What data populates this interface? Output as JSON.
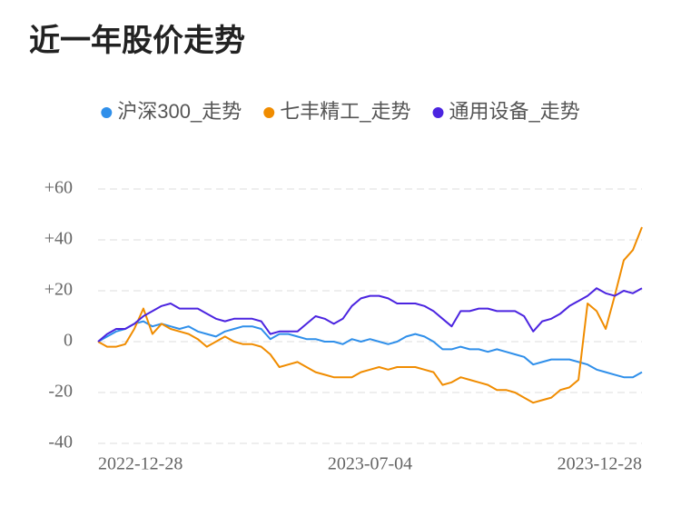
{
  "chart_data": {
    "type": "line",
    "title": "近一年股价走势",
    "categories": [
      "2022-12-28",
      null,
      null,
      null,
      null,
      null,
      null,
      null,
      null,
      null,
      null,
      null,
      null,
      null,
      null,
      null,
      null,
      null,
      null,
      null,
      null,
      null,
      null,
      null,
      null,
      null,
      null,
      null,
      null,
      null,
      "2023-07-04",
      null,
      null,
      null,
      null,
      null,
      null,
      null,
      null,
      null,
      null,
      null,
      null,
      null,
      null,
      null,
      null,
      null,
      null,
      null,
      null,
      null,
      null,
      null,
      null,
      null,
      null,
      null,
      null,
      null,
      "2023-12-28"
    ],
    "series": [
      {
        "name": "沪深300_走势",
        "color": "#2f8fea",
        "values": [
          0,
          2,
          4,
          5,
          7,
          8,
          6,
          7,
          6,
          5,
          6,
          4,
          3,
          2,
          4,
          5,
          6,
          6,
          5,
          1,
          3,
          3,
          2,
          1,
          1,
          0,
          0,
          -1,
          1,
          0,
          1,
          0,
          -1,
          0,
          2,
          3,
          2,
          0,
          -3,
          -3,
          -2,
          -3,
          -3,
          -4,
          -3,
          -4,
          -5,
          -6,
          -9,
          -8,
          -7,
          -7,
          -7,
          -8,
          -9,
          -11,
          -12,
          -13,
          -14,
          -14,
          -12
        ]
      },
      {
        "name": "七丰精工_走势",
        "color": "#f08c00",
        "values": [
          0,
          -2,
          -2,
          -1,
          5,
          13,
          3,
          7,
          5,
          4,
          3,
          1,
          -2,
          0,
          2,
          0,
          -1,
          -1,
          -2,
          -5,
          -10,
          -9,
          -8,
          -10,
          -12,
          -13,
          -14,
          -14,
          -14,
          -12,
          -11,
          -10,
          -11,
          -10,
          -10,
          -10,
          -11,
          -12,
          -17,
          -16,
          -14,
          -15,
          -16,
          -17,
          -19,
          -19,
          -20,
          -22,
          -24,
          -23,
          -22,
          -19,
          -18,
          -15,
          15,
          12,
          5,
          18,
          32,
          36,
          45
        ]
      },
      {
        "name": "通用设备_走势",
        "color": "#4b24e0",
        "values": [
          0,
          3,
          5,
          5,
          7,
          10,
          12,
          14,
          15,
          13,
          13,
          13,
          11,
          9,
          8,
          9,
          9,
          9,
          8,
          3,
          4,
          4,
          4,
          7,
          10,
          9,
          7,
          9,
          14,
          17,
          18,
          18,
          17,
          15,
          15,
          15,
          14,
          12,
          9,
          6,
          12,
          12,
          13,
          13,
          12,
          12,
          12,
          10,
          4,
          8,
          9,
          11,
          14,
          16,
          18,
          21,
          19,
          18,
          20,
          19,
          21
        ]
      }
    ],
    "ylim": [
      -40,
      60
    ],
    "yticks": [
      {
        "value": 60,
        "label": "+60"
      },
      {
        "value": 40,
        "label": "+40"
      },
      {
        "value": 20,
        "label": "+20"
      },
      0,
      -20,
      -40
    ],
    "grid": true
  }
}
